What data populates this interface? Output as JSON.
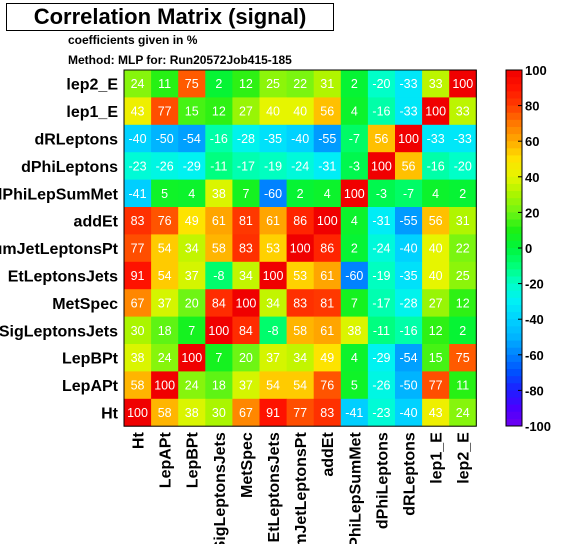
{
  "chart_data": {
    "type": "heatmap",
    "title": "Correlation Matrix (signal)",
    "subtitle_lines": [
      "coefficients given in %",
      "Method: MLP for: Run20572Job415-185"
    ],
    "variables": [
      "Ht",
      "LepAPt",
      "LepBPt",
      "SigLeptonsJets",
      "MetSpec",
      "EtLeptonsJets",
      "sumJetLeptonsPt",
      "addEt",
      "dPhiLepSumMet",
      "dPhiLeptons",
      "dRLeptons",
      "lep1_E",
      "lep2_E"
    ],
    "row_labels": [
      "lep2_E",
      "lep1_E",
      "dRLeptons",
      "dPhiLeptons",
      "dPhiLepSumMet",
      "addEt",
      "sumJetLeptonsPt",
      "EtLeptonsJets",
      "MetSpec",
      "SigLeptonsJets",
      "LepBPt",
      "LepAPt",
      "Ht"
    ],
    "col_labels": [
      "Ht",
      "LepAPt",
      "LepBPt",
      "SigLeptonsJets",
      "MetSpec",
      "EtLeptonsJets",
      "sumJetLeptonsPt",
      "addEt",
      "dPhiLepSumMet",
      "dPhiLeptons",
      "dRLeptons",
      "lep1_E",
      "lep2_E"
    ],
    "matrix": [
      [
        24,
        11,
        75,
        2,
        12,
        25,
        22,
        31,
        2,
        -20,
        -33,
        33,
        100
      ],
      [
        43,
        77,
        15,
        12,
        27,
        40,
        40,
        56,
        4,
        -16,
        -33,
        100,
        33
      ],
      [
        -40,
        -50,
        -54,
        -16,
        -28,
        -35,
        -40,
        -55,
        -7,
        56,
        100,
        -33,
        -33
      ],
      [
        -23,
        -26,
        -29,
        -11,
        -17,
        -19,
        -24,
        -31,
        -3,
        100,
        56,
        -16,
        -20
      ],
      [
        -41,
        5,
        4,
        38,
        7,
        -60,
        2,
        4,
        100,
        -3,
        -7,
        4,
        2
      ],
      [
        83,
        76,
        49,
        61,
        81,
        61,
        86,
        100,
        4,
        -31,
        -55,
        56,
        31
      ],
      [
        77,
        54,
        34,
        58,
        83,
        53,
        100,
        86,
        2,
        -24,
        -40,
        40,
        22
      ],
      [
        91,
        54,
        37,
        -8,
        34,
        100,
        53,
        61,
        -60,
        -19,
        -35,
        40,
        25
      ],
      [
        67,
        37,
        20,
        84,
        100,
        34,
        83,
        81,
        7,
        -17,
        -28,
        27,
        12
      ],
      [
        30,
        18,
        7,
        100,
        84,
        -8,
        58,
        61,
        38,
        -11,
        -16,
        12,
        2
      ],
      [
        38,
        24,
        100,
        7,
        20,
        37,
        34,
        49,
        4,
        -29,
        -54,
        15,
        75
      ],
      [
        58,
        100,
        24,
        18,
        37,
        54,
        54,
        76,
        5,
        -26,
        -50,
        77,
        11
      ],
      [
        100,
        58,
        38,
        30,
        67,
        91,
        77,
        83,
        -41,
        -23,
        -40,
        43,
        24
      ]
    ],
    "zlim": [
      -100,
      100
    ],
    "colorbar_ticks": [
      100,
      80,
      60,
      40,
      20,
      0,
      -20,
      -40,
      -60,
      -80,
      -100
    ],
    "legend_position": "right"
  }
}
